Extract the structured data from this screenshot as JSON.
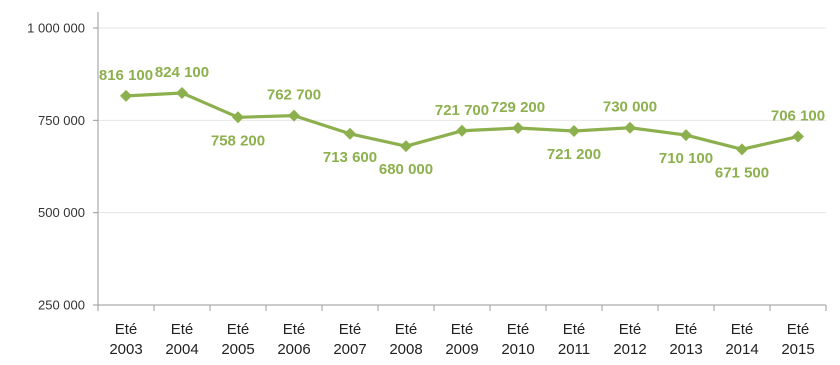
{
  "colors": {
    "series": "#8db04e",
    "grid": "#e6e6e6",
    "axis": "#9a9a9a"
  },
  "chart_data": {
    "type": "line",
    "title": "",
    "xlabel": "",
    "ylabel": "",
    "ylim": [
      250000,
      1000000
    ],
    "yticks": [
      250000,
      500000,
      750000,
      1000000
    ],
    "ytick_labels": [
      "250 000",
      "500 000",
      "750 000",
      "1 000 000"
    ],
    "grid": true,
    "legend": "none",
    "marker": "diamond",
    "categories": [
      [
        "Eté",
        "2003"
      ],
      [
        "Eté",
        "2004"
      ],
      [
        "Eté",
        "2005"
      ],
      [
        "Eté",
        "2006"
      ],
      [
        "Eté",
        "2007"
      ],
      [
        "Eté",
        "2008"
      ],
      [
        "Eté",
        "2009"
      ],
      [
        "Eté",
        "2010"
      ],
      [
        "Eté",
        "2011"
      ],
      [
        "Eté",
        "2012"
      ],
      [
        "Eté",
        "2013"
      ],
      [
        "Eté",
        "2014"
      ],
      [
        "Eté",
        "2015"
      ]
    ],
    "series": [
      {
        "values": [
          816100,
          824100,
          758200,
          762700,
          713600,
          680000,
          721700,
          729200,
          721200,
          730000,
          710100,
          671500,
          706100
        ],
        "labels": [
          "816 100",
          "824 100",
          "758 200",
          "762 700",
          "713 600",
          "680 000",
          "721 700",
          "729 200",
          "721 200",
          "730 000",
          "710 100",
          "671 500",
          "706 100"
        ]
      }
    ]
  }
}
